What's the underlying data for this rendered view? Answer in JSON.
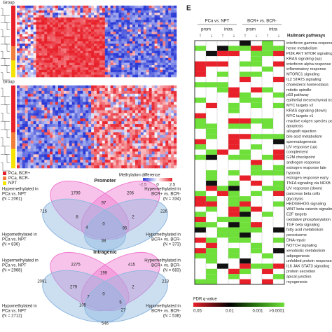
{
  "panel_label": "E",
  "left": {
    "group_label": "Group",
    "legend": [
      "PCa, BCR+",
      "PCa, BCR-",
      "NPT"
    ],
    "colorbar": {
      "title": "Methylation difference",
      "ticks": [
        "-2.5",
        "0",
        "2.5"
      ]
    }
  },
  "venn": [
    {
      "title": "Promoter",
      "labels": [
        [
          "Hypermethylated in",
          "PCa vs. NPT",
          "(N = 2061)"
        ],
        [
          "Hypermethylated in",
          "BCR+ vs. BCR-",
          "(N = 334)"
        ],
        [
          "Hypomethylated in",
          "PCa vs. NPT",
          "(N = 836)"
        ],
        [
          "Hypomethylated in",
          "BCR+ vs. BCR-",
          "(N = 373)"
        ]
      ],
      "counts": [
        "1799",
        "206",
        "715",
        "97",
        "226",
        "8",
        "2",
        "4",
        "0",
        "95",
        "38"
      ]
    },
    {
      "title": "Intragenic",
      "labels": [
        [
          "Hypermethylated in",
          "PCa vs. NPT",
          "(N = 2968)"
        ],
        [
          "Hypermethylated in",
          "BCR+ vs. BCR-",
          "(N = 683)"
        ],
        [
          "Hypomethylated in",
          "PCa vs. NPT",
          "(N = 2712)"
        ],
        [
          "Hypomethylated in",
          "BCR+ vs. BCR-",
          "(N = 538)"
        ]
      ],
      "counts": [
        "2275",
        "415",
        "2091",
        "199",
        "213",
        "279",
        "2",
        "7",
        "0",
        "105",
        "5",
        "27",
        "546"
      ]
    }
  ],
  "right": {
    "groups": [
      "PCa vs. NPT",
      "BCR+ vs. BCR-"
    ],
    "sub": [
      "prom",
      "intra",
      "prom",
      "intra"
    ],
    "arrows": [
      "↑",
      "↓",
      "↑",
      "↓",
      "↑",
      "↓",
      "↑",
      "↓"
    ],
    "pathways_title": "Hallmark pathways",
    "pathways": [
      "interferon gamma response",
      "heme metabolism",
      "PI3K AKT MTOR signaling",
      "KRAS signaling (up)",
      "interferon alpha response",
      "inflammatory response",
      "MTORC1 signaling",
      "IL2 STAT5 signaling",
      "cholesterol homeostasis",
      "mitotic spindle",
      "p53 pathway",
      "epithelial mesenchymal transition",
      "MYC targets v2",
      "KRAS signaling (down)",
      "MYC targets v1",
      "reactive oxigen species pathway",
      "apoptosis",
      "allograft rejection",
      "bile acid metabolism",
      "spermatogenesis",
      "UV response (up)",
      "complement",
      "G2M checkpoint",
      "androgen response",
      "estrogen response late",
      "hypoxia",
      "estrogen response early",
      "TNFA signaling via NFKB",
      "UV response (down)",
      "pancreas beta cells",
      "glycolysis",
      "HEDGEHOG signaling",
      "WNT beta catenin signaling",
      "E2F targets",
      "oxidative phosphorylation",
      "TGF beta signaling",
      "fatty acid metabolism",
      "peroxisome",
      "DNA repair",
      "NOTCH signaling",
      "xenobiotic metabolism",
      "adipogenesis",
      "unfolded protein response",
      "IL6 JAK STAT3 signaling",
      "protein secretion",
      "apical junction",
      "myogenesis"
    ],
    "fdr": {
      "title": "FDR q-value",
      "ticks": [
        "0.05",
        "0.01",
        "0.001",
        ">0.0001"
      ]
    }
  }
}
